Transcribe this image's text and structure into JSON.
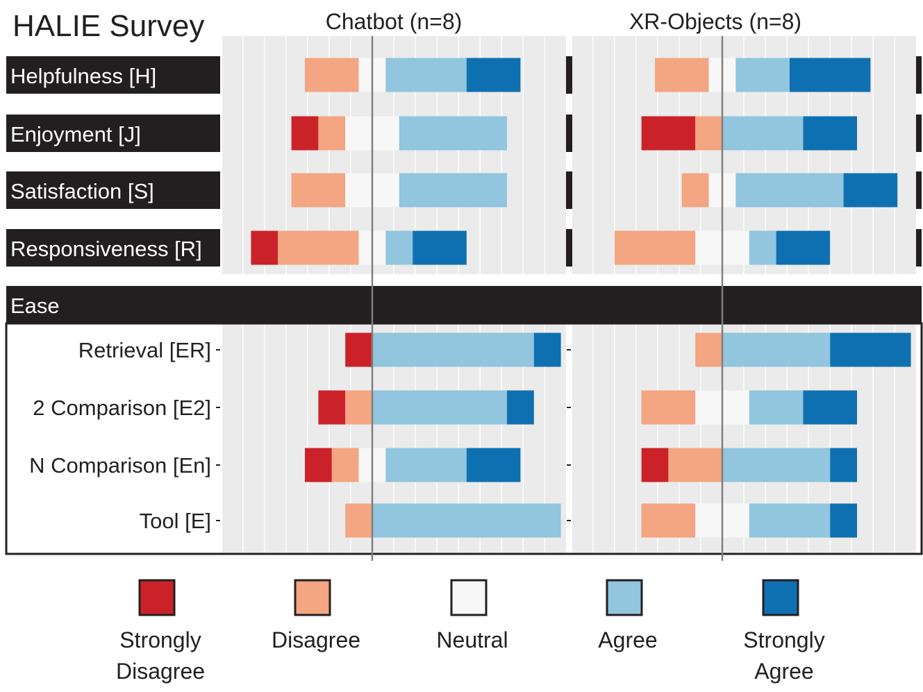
{
  "chart_data": {
    "type": "bar",
    "subtype": "diverging-stacked-likert",
    "title": "HALIE Survey",
    "panels": [
      "Chatbot (n=8)",
      "XR-Objects (n=8)"
    ],
    "levels": [
      "Strongly Disagree",
      "Disagree",
      "Neutral",
      "Agree",
      "Strongly Agree"
    ],
    "legend_lines": [
      [
        "Strongly",
        "Disagree"
      ],
      [
        "Disagree"
      ],
      [
        "Neutral"
      ],
      [
        "Agree"
      ],
      [
        "Strongly",
        "Agree"
      ]
    ],
    "colors": [
      "#cb2229",
      "#f4a582",
      "#f7f7f7",
      "#92c5de",
      "#0f70b1"
    ],
    "grid": true,
    "legend_position": "bottom",
    "group_header": "Ease",
    "categories": [
      "Helpfulness [H]",
      "Enjoyment [J]",
      "Satisfaction [S]",
      "Responsiveness [R]",
      "Retrieval [ER]",
      "2 Comparison [E2]",
      "N Comparison [En]",
      "Tool [E]"
    ],
    "series": [
      {
        "name": "Chatbot (n=8)",
        "counts": [
          [
            0,
            2,
            1,
            3,
            2
          ],
          [
            1,
            1,
            2,
            4,
            0
          ],
          [
            0,
            2,
            2,
            4,
            0
          ],
          [
            1,
            3,
            1,
            1,
            2
          ],
          [
            1,
            0,
            0,
            6,
            1
          ],
          [
            1,
            1,
            0,
            5,
            1
          ],
          [
            1,
            1,
            1,
            3,
            2
          ],
          [
            0,
            1,
            0,
            7,
            0
          ]
        ]
      },
      {
        "name": "XR-Objects (n=8)",
        "counts": [
          [
            0,
            2,
            1,
            2,
            3
          ],
          [
            2,
            1,
            0,
            3,
            2
          ],
          [
            0,
            1,
            1,
            4,
            2
          ],
          [
            0,
            3,
            2,
            1,
            2
          ],
          [
            0,
            1,
            0,
            4,
            3
          ],
          [
            0,
            2,
            2,
            2,
            2
          ],
          [
            1,
            2,
            0,
            4,
            1
          ],
          [
            0,
            2,
            2,
            3,
            1
          ]
        ]
      }
    ]
  }
}
